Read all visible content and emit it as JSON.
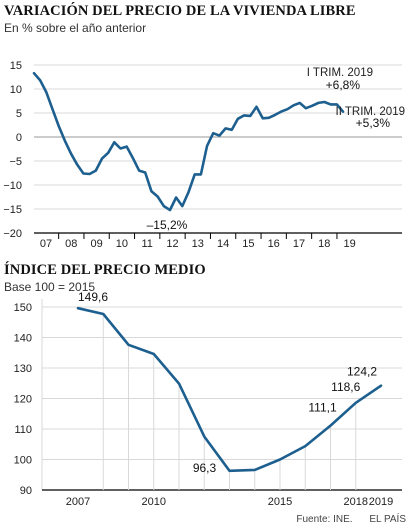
{
  "chart_data": [
    {
      "type": "line",
      "title": "VARIACIÓN DEL PRECIO DE LA VIVIENDA LIBRE",
      "subtitle": "En % sobre el año anterior",
      "ylim": [
        -20,
        15
      ],
      "yticks": [
        15,
        10,
        5,
        0,
        -5,
        -10,
        -15,
        -20
      ],
      "x_tick_labels": [
        "07",
        "08",
        "09",
        "10",
        "11",
        "12",
        "13",
        "14",
        "15",
        "16",
        "17",
        "18",
        "19"
      ],
      "series": [
        {
          "values": [
            13.3,
            11.8,
            9.3,
            5.8,
            2.3,
            -0.8,
            -3.5,
            -5.8,
            -7.6,
            -7.7,
            -7.0,
            -4.5,
            -3.3,
            -1.1,
            -2.4,
            -2.0,
            -4.4,
            -7.0,
            -7.4,
            -11.3,
            -12.4,
            -14.4,
            -15.2,
            -12.6,
            -14.4,
            -11.5,
            -7.8,
            -7.8,
            -1.9,
            0.8,
            0.3,
            1.8,
            1.5,
            3.8,
            4.5,
            4.4,
            6.3,
            3.9,
            4.0,
            4.6,
            5.3,
            5.8,
            6.6,
            7.1,
            6.0,
            6.5,
            7.1,
            7.3,
            6.8,
            6.8,
            5.3
          ]
        }
      ],
      "annotations": [
        {
          "text": "I TRIM. 2019",
          "value": "+6,8%"
        },
        {
          "text": "II TRIM. 2019",
          "value": "+5,3%"
        },
        {
          "text": "–15,2%"
        }
      ]
    },
    {
      "type": "line",
      "title": "ÍNDICE DEL PRECIO MEDIO",
      "subtitle": "Base 100 = 2015",
      "ylim": [
        90,
        150
      ],
      "yticks": [
        150,
        140,
        130,
        120,
        110,
        100,
        90
      ],
      "x_tick_labels": [
        "2007",
        "2010",
        "2015",
        "2018",
        "2019"
      ],
      "series": [
        {
          "x": [
            2007,
            2008,
            2009,
            2010,
            2011,
            2012,
            2013,
            2014,
            2015,
            2016,
            2017,
            2018,
            2019
          ],
          "values": [
            149.6,
            147.7,
            137.6,
            134.6,
            124.9,
            107.5,
            96.3,
            96.6,
            100.0,
            104.4,
            111.1,
            118.6,
            124.2
          ]
        }
      ],
      "data_labels": [
        {
          "text": "149,6"
        },
        {
          "text": "96,3"
        },
        {
          "text": "111,1"
        },
        {
          "text": "118,6"
        },
        {
          "text": "124,2"
        }
      ]
    }
  ],
  "footer": {
    "source": "Fuente: INE.",
    "credit": "EL PAÍS"
  },
  "colors": {
    "line": "#1d5f8f",
    "grid": "#d9d9d9",
    "axis": "#000000"
  }
}
